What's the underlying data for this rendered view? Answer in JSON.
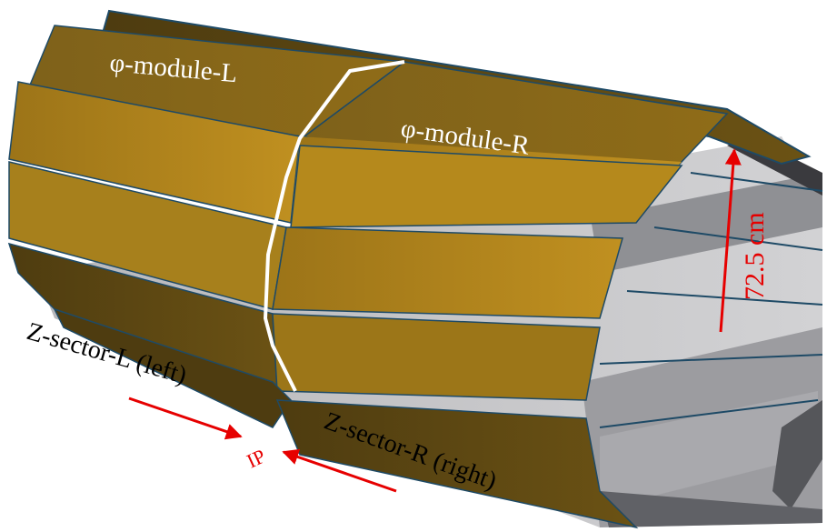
{
  "labels": {
    "phi_module_l": "φ-module-L",
    "phi_module_r": "φ-module-R",
    "radius": "72.5 cm",
    "z_sector_l": "Z-sector-L (left)",
    "z_sector_r": "Z-sector-R (right)",
    "ip": "IP"
  },
  "colors": {
    "panel_light": "#b58a1c",
    "panel_mid": "#8a6a1a",
    "panel_dark": "#5a4612",
    "interior": "#c6c6c8",
    "interior_dark": "#8f9094",
    "edge": "#1e4a66",
    "annotation": "#e60000",
    "boundary_line": "#ffffff"
  }
}
